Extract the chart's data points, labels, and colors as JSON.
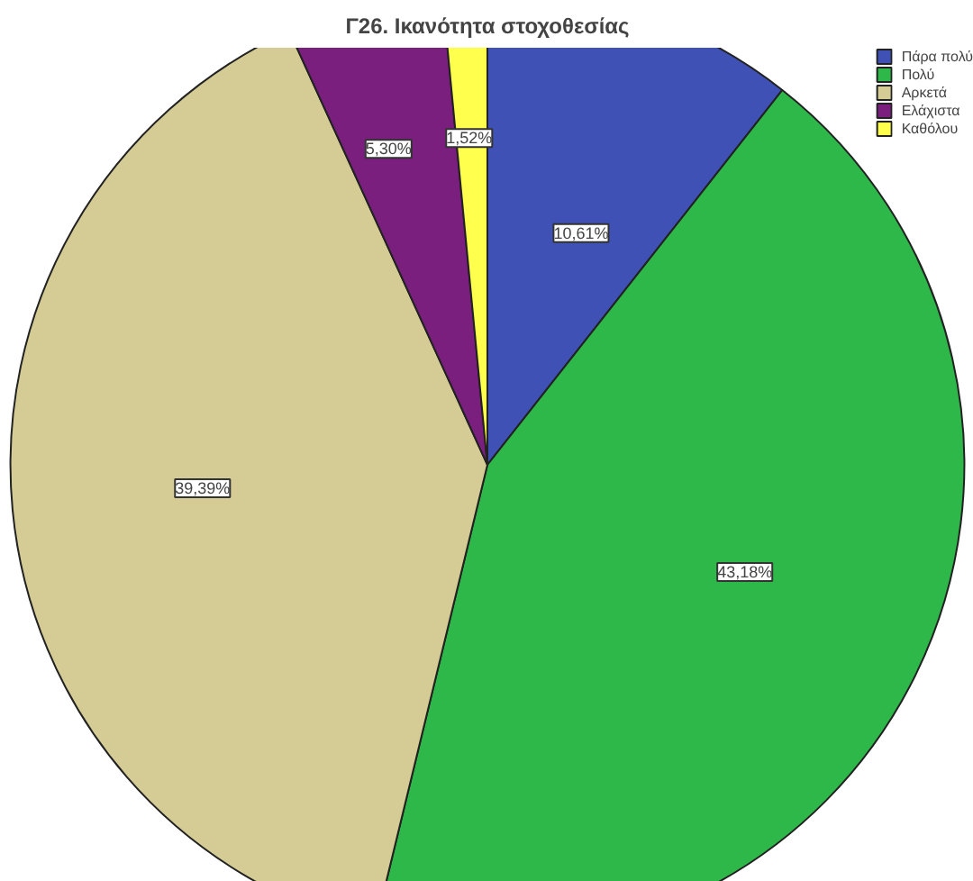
{
  "chart_data": {
    "type": "pie",
    "title": "Γ26. Ικανότητα στοχοθεσίας",
    "categories": [
      "Πάρα πολύ",
      "Πολύ",
      "Αρκετά",
      "Ελάχιστα",
      "Καθόλου"
    ],
    "values": [
      10.61,
      43.18,
      39.39,
      5.3,
      1.52
    ],
    "colors": [
      "#3f51b5",
      "#2fb84a",
      "#d4cc94",
      "#7b1f7f",
      "#ffff4d"
    ],
    "value_labels": [
      "10,61%",
      "43,18%",
      "39,39%",
      "5,30%",
      "1,52%"
    ],
    "legend": "top right"
  }
}
